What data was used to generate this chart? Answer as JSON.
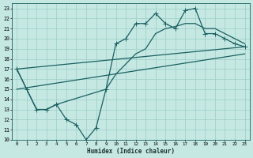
{
  "xlabel": "Humidex (Indice chaleur)",
  "xlim": [
    -0.5,
    23.5
  ],
  "ylim": [
    10,
    23.5
  ],
  "xticks": [
    0,
    1,
    2,
    3,
    4,
    5,
    6,
    7,
    8,
    9,
    10,
    11,
    12,
    13,
    14,
    15,
    16,
    17,
    18,
    19,
    20,
    21,
    22,
    23
  ],
  "yticks": [
    10,
    11,
    12,
    13,
    14,
    15,
    16,
    17,
    18,
    19,
    20,
    21,
    22,
    23
  ],
  "background_color": "#c5e8e3",
  "grid_color": "#9ecdc7",
  "line_color": "#1a6060",
  "line_width": 0.9,
  "marker": "+",
  "markersize": 4,
  "series_zigzag": {
    "x": [
      0,
      1,
      2,
      3,
      4,
      5,
      6,
      7,
      8,
      9,
      10,
      11,
      12,
      13,
      14,
      15,
      16,
      17,
      18,
      19,
      20,
      21,
      22,
      23
    ],
    "y": [
      17.0,
      15.0,
      13.0,
      13.0,
      13.5,
      12.0,
      11.5,
      10.0,
      11.2,
      15.0,
      19.5,
      20.0,
      21.5,
      21.5,
      22.5,
      21.5,
      21.0,
      22.8,
      23.0,
      20.5,
      20.5,
      20.0,
      19.5,
      19.2
    ]
  },
  "series_smooth": {
    "x": [
      0,
      1,
      2,
      3,
      4,
      9,
      10,
      11,
      12,
      13,
      14,
      15,
      16,
      17,
      18,
      19,
      20,
      21,
      22,
      23
    ],
    "y": [
      17.0,
      15.0,
      13.0,
      13.0,
      13.5,
      15.0,
      16.5,
      17.5,
      18.5,
      19.0,
      20.5,
      21.0,
      21.2,
      21.5,
      21.5,
      21.0,
      21.0,
      20.5,
      20.0,
      19.5
    ]
  },
  "trend1": {
    "x": [
      0,
      23
    ],
    "y": [
      17.0,
      19.2
    ]
  },
  "trend2": {
    "x": [
      0,
      23
    ],
    "y": [
      15.0,
      18.5
    ]
  }
}
